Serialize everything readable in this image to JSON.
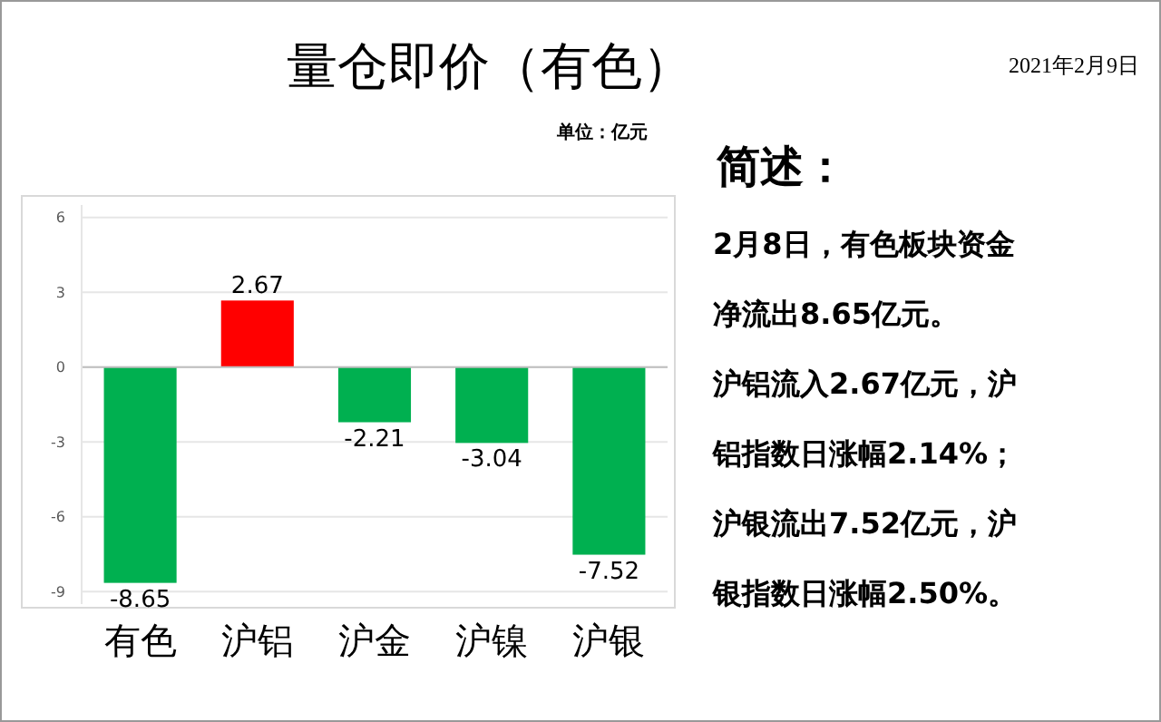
{
  "chart_data": {
    "type": "bar",
    "title": "量仓即价（有色）",
    "subtitle": "单位：亿元",
    "categories": [
      "有色",
      "沪铝",
      "沪金",
      "沪镍",
      "沪银"
    ],
    "values": [
      -8.65,
      2.67,
      -2.21,
      -3.04,
      -7.52
    ],
    "colors": [
      "#00b050",
      "#ff0000",
      "#00b050",
      "#00b050",
      "#00b050"
    ],
    "ylim": [
      -9.5,
      6.5
    ],
    "yticks": [
      -9,
      -6,
      -3,
      0,
      3,
      6
    ],
    "grid": "y",
    "data_labels": true,
    "annotations": [
      "2021年2月9日",
      "简述：",
      "2月8日，有色板块资金",
      "净流出8.65亿元。",
      "沪铝流入2.67亿元，沪",
      "铝指数日涨幅2.14%；",
      "沪银流出7.52亿元，沪",
      "银指数日涨幅2.50%。"
    ]
  }
}
